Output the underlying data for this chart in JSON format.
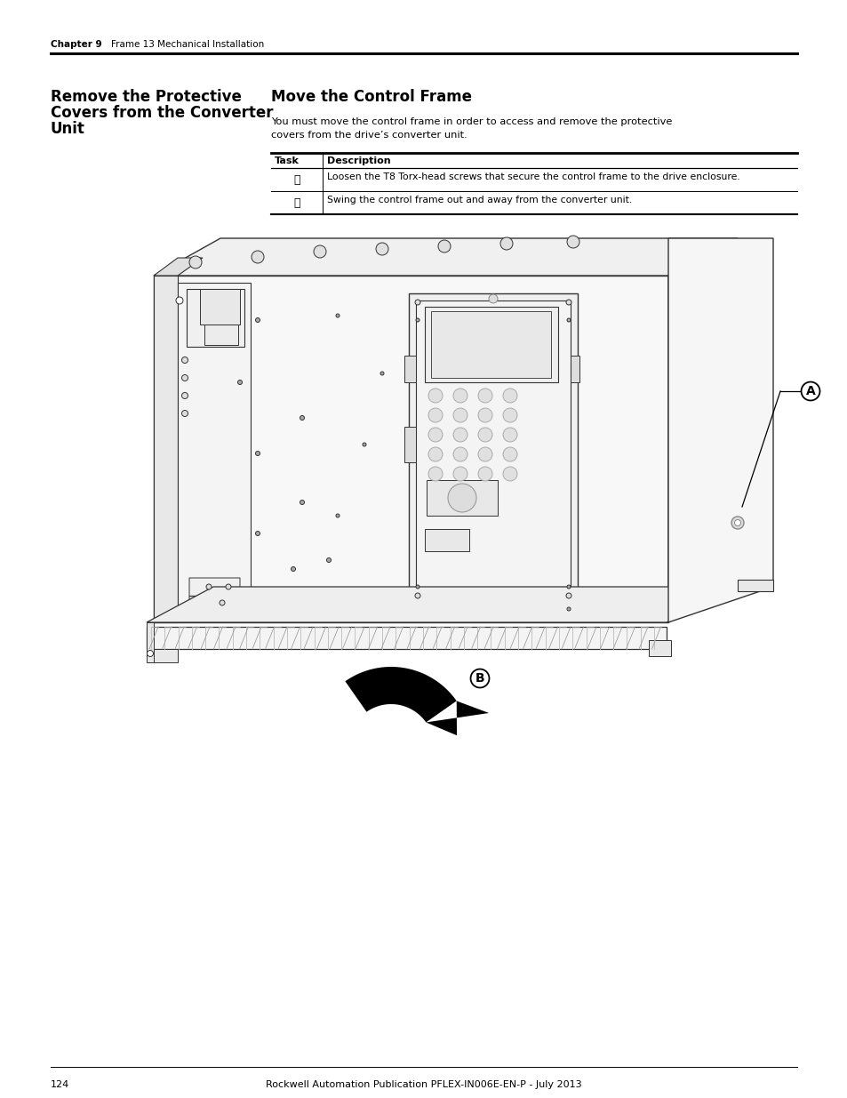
{
  "page_bg": "#ffffff",
  "header_chapter": "Chapter 9",
  "header_section": "Frame 13 Mechanical Installation",
  "left_title_lines": [
    "Remove the Protective",
    "Covers from the Converter",
    "Unit"
  ],
  "right_title": "Move the Control Frame",
  "body_line1": "You must move the control frame in order to access and remove the protective",
  "body_line2": "covers from the drive’s converter unit.",
  "table_header_task": "Task",
  "table_header_desc": "Description",
  "row_a_symbol": "Ⓐ",
  "row_a_text": "Loosen the T8 Torx-head screws that secure the control frame to the drive enclosure.",
  "row_b_symbol": "Ⓑ",
  "row_b_text": "Swing the control frame out and away from the converter unit.",
  "footer_text": "Rockwell Automation Publication PFLEX-IN006E-EN-P - July 2013",
  "footer_page": "124",
  "label_A": "A",
  "label_B": "B"
}
